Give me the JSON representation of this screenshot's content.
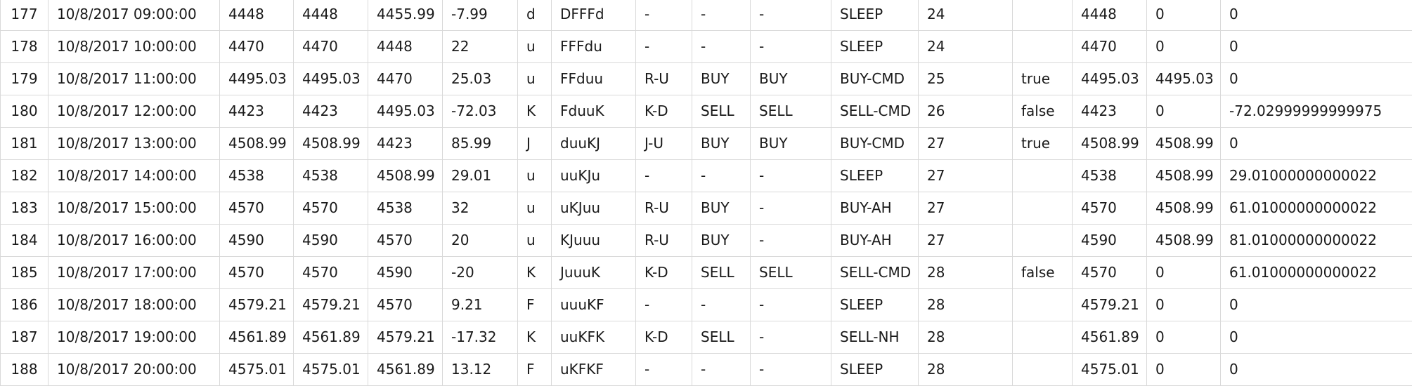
{
  "table": {
    "rows": [
      [
        "177",
        "10/8/2017 09:00:00",
        "4448",
        "4448",
        "4455.99",
        "-7.99",
        "d",
        "DFFFd",
        "-",
        "-",
        "-",
        "SLEEP",
        "24",
        "",
        "4448",
        "0",
        "0"
      ],
      [
        "178",
        "10/8/2017 10:00:00",
        "4470",
        "4470",
        "4448",
        "22",
        "u",
        "FFFdu",
        "-",
        "-",
        "-",
        "SLEEP",
        "24",
        "",
        "4470",
        "0",
        "0"
      ],
      [
        "179",
        "10/8/2017 11:00:00",
        "4495.03",
        "4495.03",
        "4470",
        "25.03",
        "u",
        "FFduu",
        "R-U",
        "BUY",
        "BUY",
        "BUY-CMD",
        "25",
        "true",
        "4495.03",
        "4495.03",
        "0"
      ],
      [
        "180",
        "10/8/2017 12:00:00",
        "4423",
        "4423",
        "4495.03",
        "-72.03",
        "K",
        "FduuK",
        "K-D",
        "SELL",
        "SELL",
        "SELL-CMD",
        "26",
        "false",
        "4423",
        "0",
        "-72.02999999999975"
      ],
      [
        "181",
        "10/8/2017 13:00:00",
        "4508.99",
        "4508.99",
        "4423",
        "85.99",
        "J",
        "duuKJ",
        "J-U",
        "BUY",
        "BUY",
        "BUY-CMD",
        "27",
        "true",
        "4508.99",
        "4508.99",
        "0"
      ],
      [
        "182",
        "10/8/2017 14:00:00",
        "4538",
        "4538",
        "4508.99",
        "29.01",
        "u",
        "uuKJu",
        "-",
        "-",
        "-",
        "SLEEP",
        "27",
        "",
        "4538",
        "4508.99",
        "29.01000000000022"
      ],
      [
        "183",
        "10/8/2017 15:00:00",
        "4570",
        "4570",
        "4538",
        "32",
        "u",
        "uKJuu",
        "R-U",
        "BUY",
        "-",
        "BUY-AH",
        "27",
        "",
        "4570",
        "4508.99",
        "61.01000000000022"
      ],
      [
        "184",
        "10/8/2017 16:00:00",
        "4590",
        "4590",
        "4570",
        "20",
        "u",
        "KJuuu",
        "R-U",
        "BUY",
        "-",
        "BUY-AH",
        "27",
        "",
        "4590",
        "4508.99",
        "81.01000000000022"
      ],
      [
        "185",
        "10/8/2017 17:00:00",
        "4570",
        "4570",
        "4590",
        "-20",
        "K",
        "JuuuK",
        "K-D",
        "SELL",
        "SELL",
        "SELL-CMD",
        "28",
        "false",
        "4570",
        "0",
        "61.01000000000022"
      ],
      [
        "186",
        "10/8/2017 18:00:00",
        "4579.21",
        "4579.21",
        "4570",
        "9.21",
        "F",
        "uuuKF",
        "-",
        "-",
        "-",
        "SLEEP",
        "28",
        "",
        "4579.21",
        "0",
        "0"
      ],
      [
        "187",
        "10/8/2017 19:00:00",
        "4561.89",
        "4561.89",
        "4579.21",
        "-17.32",
        "K",
        "uuKFK",
        "K-D",
        "SELL",
        "-",
        "SELL-NH",
        "28",
        "",
        "4561.89",
        "0",
        "0"
      ],
      [
        "188",
        "10/8/2017 20:00:00",
        "4575.01",
        "4575.01",
        "4561.89",
        "13.12",
        "F",
        "uKFKF",
        "-",
        "-",
        "-",
        "SLEEP",
        "28",
        "",
        "4575.01",
        "0",
        "0"
      ]
    ]
  }
}
